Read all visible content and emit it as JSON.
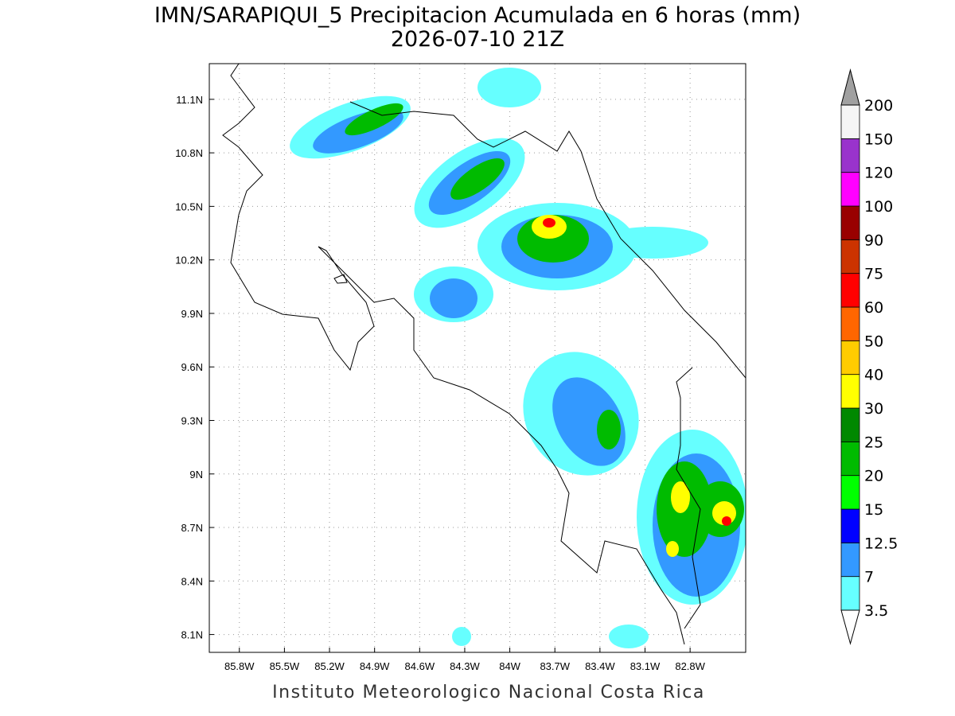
{
  "title": "IMN/SARAPIQUI_5 Precipitacion Acumulada en 6 horas (mm)",
  "subtitle": "2026-07-10 21Z",
  "footer": "Instituto Meteorologico Nacional Costa Rica",
  "map": {
    "xlim": [
      -86.0,
      -82.43
    ],
    "ylim": [
      8.0,
      11.3
    ],
    "grid": true,
    "xticks": [
      {
        "value": -85.8,
        "label": "85.8W"
      },
      {
        "value": -85.5,
        "label": "85.5W"
      },
      {
        "value": -85.2,
        "label": "85.2W"
      },
      {
        "value": -84.9,
        "label": "84.9W"
      },
      {
        "value": -84.6,
        "label": "84.6W"
      },
      {
        "value": -84.3,
        "label": "84.3W"
      },
      {
        "value": -84.0,
        "label": "84W"
      },
      {
        "value": -83.7,
        "label": "83.7W"
      },
      {
        "value": -83.4,
        "label": "83.4W"
      },
      {
        "value": -83.1,
        "label": "83.1W"
      },
      {
        "value": -82.8,
        "label": "82.8W"
      }
    ],
    "yticks": [
      {
        "value": 11.1,
        "label": "11.1N"
      },
      {
        "value": 10.8,
        "label": "10.8N"
      },
      {
        "value": 10.5,
        "label": "10.5N"
      },
      {
        "value": 10.2,
        "label": "10.2N"
      },
      {
        "value": 9.9,
        "label": "9.9N"
      },
      {
        "value": 9.6,
        "label": "9.6N"
      },
      {
        "value": 9.3,
        "label": "9.3N"
      },
      {
        "value": 9.0,
        "label": "9N"
      },
      {
        "value": 8.7,
        "label": "8.7N"
      },
      {
        "value": 8.4,
        "label": "8.4N"
      },
      {
        "value": 8.1,
        "label": "8.1N"
      }
    ]
  },
  "colorbar": {
    "levels": [
      3.5,
      7,
      12.5,
      15,
      20,
      25,
      30,
      40,
      50,
      60,
      75,
      90,
      100,
      120,
      150,
      200
    ],
    "colors": [
      "#66ffff",
      "#3399ff",
      "#0000ff",
      "#00ff00",
      "#00bb00",
      "#008800",
      "#ffff00",
      "#ffcc00",
      "#ff6600",
      "#ff0000",
      "#cc3300",
      "#990000",
      "#ff00ff",
      "#9933cc",
      "#f5f5f5"
    ],
    "under_color": "#ffffff",
    "over_color": "#a0a0a0"
  }
}
